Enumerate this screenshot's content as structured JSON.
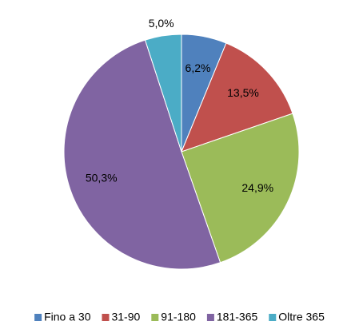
{
  "chart_data": {
    "type": "pie",
    "categories": [
      "Fino a 30",
      "31-90",
      "91-180",
      "181-365",
      "Oltre 365"
    ],
    "values": [
      6.2,
      13.5,
      24.9,
      50.3,
      5.0
    ],
    "value_labels": [
      "6,2%",
      "13,5%",
      "24,9%",
      "50,3%",
      "5,0%"
    ],
    "colors": [
      "#4f81bd",
      "#c0504d",
      "#9bbb59",
      "#8064a2",
      "#4bacc6"
    ],
    "legend": "bottom"
  }
}
